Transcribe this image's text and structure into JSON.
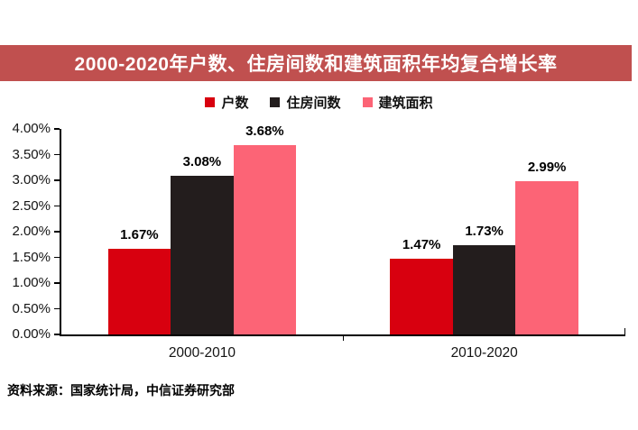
{
  "title": {
    "text": "2000-2020年户数、住房间数和建筑面积年均复合增长率",
    "bg_color": "#c0504f",
    "text_color": "#ffffff"
  },
  "source_note": "资料来源：国家统计局，中信证券研究部",
  "chart_data": {
    "type": "bar",
    "title": "2000-2020年户数、住房间数和建筑面积年均复合增长率",
    "categories": [
      "2000-2010",
      "2010-2020"
    ],
    "series": [
      {
        "name": "户数",
        "color": "#d8000f",
        "values": [
          1.67,
          1.47
        ]
      },
      {
        "name": "住房间数",
        "color": "#231d1d",
        "values": [
          3.08,
          1.73
        ]
      },
      {
        "name": "建筑面积",
        "color": "#fc6476",
        "values": [
          3.68,
          2.99
        ]
      }
    ],
    "ylabel": "",
    "xlabel": "",
    "ylim": [
      0,
      4
    ],
    "ytick_step": 0.5,
    "ytick_labels": [
      "0.00%",
      "0.50%",
      "1.00%",
      "1.50%",
      "2.00%",
      "2.50%",
      "3.00%",
      "3.50%",
      "4.00%"
    ],
    "value_label_format": "0.00%",
    "grid": false,
    "legend_position": "top",
    "axis_color": "#000000"
  }
}
